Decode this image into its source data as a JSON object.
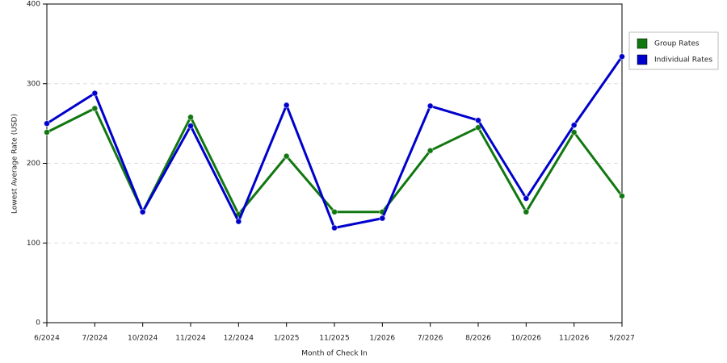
{
  "chart_data": {
    "type": "line",
    "x_label": "Month of Check In",
    "y_label": "Lowest Average Rate (USD)",
    "categories": [
      "6/2024",
      "7/2024",
      "10/2024",
      "11/2024",
      "12/2024",
      "1/2025",
      "11/2025",
      "1/2026",
      "7/2026",
      "8/2026",
      "10/2026",
      "11/2026",
      "5/2027"
    ],
    "series": [
      {
        "name": "Group Rates",
        "color": "#117711",
        "values": [
          239,
          269,
          139,
          258,
          136,
          209,
          139,
          139,
          216,
          245,
          139,
          239,
          159
        ]
      },
      {
        "name": "Individual Rates",
        "color": "#0000cc",
        "values": [
          250,
          288,
          139,
          247,
          127,
          273,
          119,
          131,
          272,
          254,
          156,
          248,
          334
        ]
      }
    ],
    "ylim": [
      0,
      400
    ],
    "yticks": [
      0,
      100,
      200,
      300,
      400
    ],
    "grid": true
  }
}
